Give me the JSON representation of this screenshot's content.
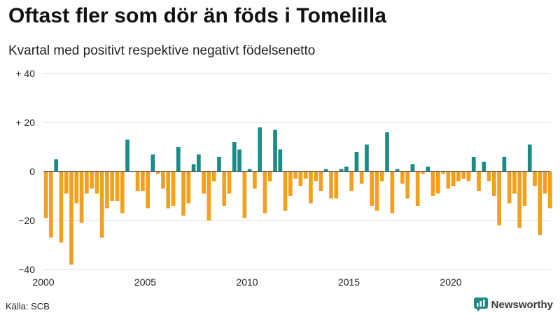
{
  "header": {
    "title": "Oftast fler som dör än föds i Tomelilla",
    "subtitle": "Kvartal med positivt respektive negativt födelsenetto"
  },
  "footer": {
    "source": "Källa: SCB",
    "brand": "Newsworthy",
    "brand_icon": "newsworthy-logo-icon"
  },
  "colors": {
    "positive": "#1a8c85",
    "negative": "#f2a01f",
    "grid": "#dcdcdc",
    "zero_line": "#333333"
  },
  "chart_data": {
    "type": "bar",
    "title": "Oftast fler som dör än föds i Tomelilla",
    "subtitle": "Kvartal med positivt respektive negativt födelsenetto",
    "xlabel": "",
    "ylabel": "",
    "ylim": [
      -40,
      40
    ],
    "y_ticks": [
      -40,
      -20,
      0,
      20,
      40
    ],
    "y_tick_labels": [
      "−40",
      "−20",
      "0",
      "+ 20",
      "+ 40"
    ],
    "x_tick_labels": [
      "2000",
      "2005",
      "2010",
      "2015",
      "2020"
    ],
    "x_tick_years": [
      2000,
      2005,
      2010,
      2015,
      2020
    ],
    "start_year": 2000,
    "grid": true,
    "legend": "none",
    "values": [
      -19,
      -27,
      5,
      -29,
      -9,
      -38,
      -13,
      -21,
      -9,
      -7,
      -9,
      -27,
      -15,
      -12,
      -12,
      -17,
      13,
      0,
      -8,
      -8,
      -15,
      7,
      -1,
      -7,
      -15,
      -14,
      10,
      -18,
      -13,
      3,
      7,
      -9,
      -20,
      -4,
      6,
      -14,
      -9,
      12,
      9,
      -19,
      1,
      -7,
      18,
      -17,
      -4,
      17,
      9,
      -16,
      -10,
      -3,
      -6,
      -3,
      -13,
      -4,
      -8,
      1,
      -11,
      -11,
      1,
      2,
      -8,
      8,
      -5,
      11,
      -14,
      -16,
      -4,
      16,
      -17,
      1,
      -5,
      -11,
      3,
      -14,
      -1,
      2,
      -10,
      -9,
      -1,
      -7,
      -6,
      -4,
      -3,
      -4,
      6,
      -8,
      4,
      -4,
      -10,
      -22,
      6,
      -13,
      -9,
      -23,
      -14,
      11,
      -6,
      -26,
      -9,
      -15
    ]
  }
}
